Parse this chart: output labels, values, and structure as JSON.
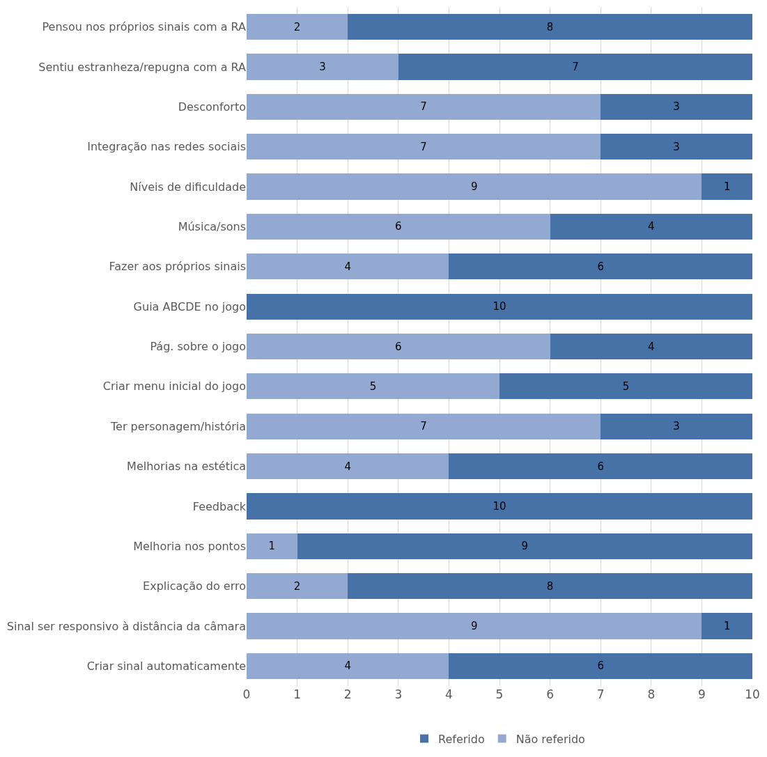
{
  "chart_data": {
    "type": "bar",
    "orientation": "horizontal",
    "stacked": true,
    "categories": [
      "Pensou nos próprios sinais com a RA",
      "Sentiu estranheza/repugna com a RA",
      "Desconforto",
      "Integração nas redes sociais",
      "Níveis de dificuldade",
      "Música/sons",
      "Fazer aos próprios sinais",
      "Guia ABCDE no jogo",
      "Pág. sobre o jogo",
      "Criar menu inicial do jogo",
      "Ter personagem/história",
      "Melhorias na estética",
      "Feedback",
      "Melhoria nos pontos",
      "Explicação do erro",
      "Sinal ser responsivo à distância da câmara",
      "Criar sinal automaticamente"
    ],
    "series": [
      {
        "name": "Não referido",
        "color": "#94a9d2",
        "values": [
          2,
          3,
          7,
          7,
          9,
          6,
          4,
          0,
          6,
          5,
          7,
          4,
          0,
          1,
          2,
          9,
          4
        ],
        "value_labels": [
          "2",
          "3",
          "7",
          "7",
          "9",
          "6",
          "4",
          null,
          "6",
          "5",
          "7",
          "4",
          null,
          "1",
          "2",
          "9",
          "4"
        ]
      },
      {
        "name": "Referido",
        "color": "#4672a8",
        "values": [
          8,
          7,
          3,
          3,
          1,
          4,
          6,
          10,
          4,
          5,
          3,
          6,
          10,
          9,
          8,
          1,
          6
        ],
        "value_labels": [
          "8",
          "7",
          "3",
          "3",
          "1",
          "4",
          "6",
          "10",
          "4",
          "5",
          "3",
          "6",
          "10",
          "9",
          "8",
          "1",
          "6"
        ]
      }
    ],
    "xlim": [
      0,
      10
    ],
    "xticks": [
      0,
      1,
      2,
      3,
      4,
      5,
      6,
      7,
      8,
      9,
      10
    ],
    "grid": "x",
    "legend": "bottom"
  }
}
